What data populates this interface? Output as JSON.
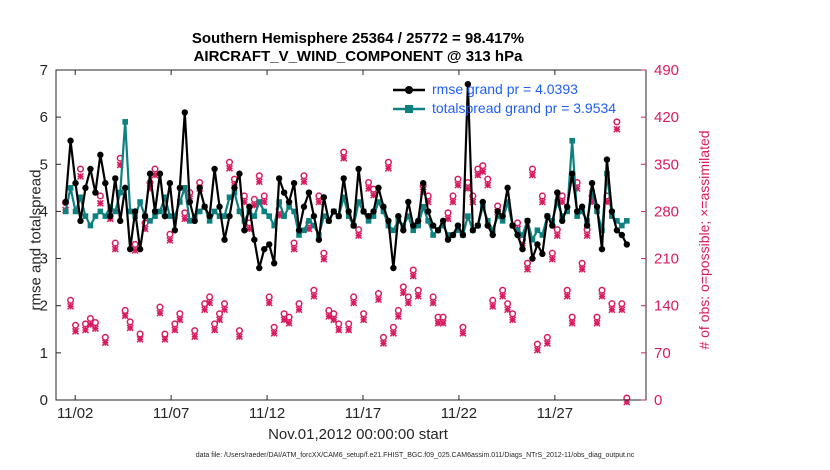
{
  "title_line1": "Southern Hemisphere 25364 / 25772 = 98.417%",
  "title_line2": "AIRCRAFT_V_WIND_COMPONENT @ 313 hPa",
  "footer": "data file: /Users/raeder/DAI/ATM_forcXX/CAM6_setup/f.e21.FHIST_BGC.f09_025.CAM6assim.011/Diags_NTrS_2012-11/obs_diag_output.nc",
  "chart_data": {
    "type": "line",
    "xlabel": "Nov.01,2012 00:00:00 start",
    "ylabel": "rmse and totalspread",
    "y2label": "# of obs: o=possible; ×=assimilated",
    "xlim": [
      0.5,
      31.25
    ],
    "ylim": [
      0,
      7
    ],
    "y2lim": [
      0,
      490
    ],
    "x_ticks": [
      1.5,
      6.5,
      11.5,
      16.5,
      21.5,
      26.5
    ],
    "x_tick_labels": [
      "11/02",
      "11/07",
      "11/12",
      "11/17",
      "11/22",
      "11/27"
    ],
    "y_ticks": [
      "0",
      "1",
      "2",
      "3",
      "4",
      "5",
      "6",
      "7"
    ],
    "y2_ticks": [
      "0",
      "70",
      "140",
      "210",
      "280",
      "350",
      "420",
      "490"
    ],
    "series": [
      {
        "name": "rmse grand pr = 4.0393",
        "color": "#000000",
        "values": [
          4.2,
          5.5,
          4.6,
          3.8,
          4.5,
          4.9,
          4.4,
          5.2,
          4.6,
          3.9,
          4.7,
          3.8,
          4.5,
          3.2,
          4.0,
          3.2,
          3.9,
          4.8,
          4.0,
          4.8,
          3.9,
          4.6,
          3.6,
          4.5,
          6.1,
          4.2,
          3.8,
          4.5,
          4.1,
          3.9,
          4.9,
          4.1,
          3.4,
          3.9,
          4.5,
          4.8,
          3.6,
          4.1,
          3.4,
          2.8,
          3.2,
          3.3,
          2.9,
          4.7,
          4.4,
          4.2,
          4.6,
          3.6,
          4.1,
          4.4,
          3.9,
          3.4,
          4.3,
          3.8,
          4.0,
          3.9,
          4.7,
          4.0,
          3.7,
          4.9,
          4.0,
          3.9,
          4.0,
          4.5,
          4.1,
          3.8,
          2.8,
          3.9,
          3.6,
          4.2,
          3.7,
          3.8,
          4.6,
          4.0,
          3.7,
          3.6,
          3.8,
          3.4,
          3.5,
          3.7,
          3.5,
          6.7,
          3.6,
          3.7,
          4.2,
          3.7,
          3.5,
          4.0,
          3.9,
          4.5,
          3.7,
          3.5,
          3.2,
          3.8,
          3.0,
          3.3,
          3.1,
          3.9,
          3.7,
          4.4,
          3.8,
          4.1,
          4.8,
          4.0,
          4.1,
          3.7,
          4.6,
          4.1,
          3.2,
          5.1,
          4.0,
          3.6,
          3.5,
          3.3
        ],
        "marker": "dot"
      },
      {
        "name": "totalspread grand pr = 3.9534",
        "color": "#0f8080",
        "values": [
          4.0,
          4.5,
          4.0,
          4.3,
          3.9,
          3.7,
          3.9,
          4.0,
          3.9,
          4.1,
          4.0,
          4.4,
          5.9,
          4.0,
          3.9,
          4.2,
          3.9,
          3.8,
          3.9,
          4.0,
          4.3,
          3.9,
          3.9,
          4.2,
          4.5,
          3.8,
          3.9,
          4.0,
          4.1,
          3.8,
          4.0,
          3.9,
          3.9,
          4.3,
          4.4,
          4.0,
          3.8,
          4.0,
          3.9,
          4.2,
          4.0,
          3.9,
          3.7,
          4.2,
          3.9,
          4.1,
          4.0,
          3.5,
          3.6,
          3.8,
          3.7,
          3.5,
          3.9,
          3.8,
          4.0,
          3.9,
          4.3,
          3.9,
          3.7,
          4.2,
          4.0,
          3.8,
          3.9,
          4.2,
          4.0,
          3.7,
          3.6,
          3.8,
          3.7,
          3.9,
          3.6,
          3.7,
          4.1,
          3.8,
          3.5,
          3.6,
          3.7,
          3.5,
          3.5,
          3.6,
          3.5,
          3.9,
          3.6,
          3.7,
          4.1,
          3.8,
          3.6,
          3.9,
          3.8,
          4.2,
          3.7,
          3.6,
          3.5,
          3.8,
          3.4,
          3.6,
          3.5,
          3.9,
          3.8,
          4.2,
          3.9,
          4.0,
          5.5,
          3.9,
          4.0,
          3.8,
          4.4,
          4.0,
          3.6,
          4.8,
          3.9,
          3.8,
          3.7,
          3.8
        ],
        "marker": "square"
      }
    ],
    "obs_possible": [
      290,
      145,
      108,
      340,
      110,
      118,
      112,
      300,
      90,
      275,
      230,
      356,
      130,
      113,
      228,
      95,
      260,
      320,
      340,
      135,
      95,
      243,
      110,
      125,
      275,
      305,
      100,
      320,
      140,
      150,
      110,
      125,
      140,
      350,
      325,
      100,
      300,
      260,
      295,
      330,
      300,
      150,
      105,
      280,
      125,
      120,
      230,
      140,
      330,
      260,
      160,
      300,
      215,
      130,
      125,
      110,
      365,
      110,
      150,
      250,
      125,
      320,
      310,
      155,
      90,
      350,
      105,
      130,
      165,
      150,
      190,
      160,
      315,
      300,
      150,
      120,
      120,
      275,
      300,
      325,
      105,
      320,
      300,
      340,
      345,
      325,
      145,
      285,
      160,
      140,
      125,
      260,
      235,
      200,
      340,
      80,
      300,
      90,
      215,
      250,
      300,
      160,
      120,
      320,
      200,
      250,
      300,
      120,
      160,
      300,
      140,
      410,
      140,
      0
    ],
    "obs_assimilated": [
      285,
      142,
      105,
      335,
      107,
      115,
      109,
      295,
      88,
      272,
      227,
      352,
      128,
      110,
      225,
      93,
      257,
      317,
      337,
      132,
      93,
      240,
      107,
      122,
      272,
      302,
      97,
      317,
      137,
      147,
      107,
      122,
      137,
      347,
      322,
      97,
      297,
      257,
      292,
      327,
      297,
      147,
      102,
      277,
      122,
      117,
      227,
      137,
      327,
      257,
      157,
      297,
      212,
      127,
      122,
      107,
      362,
      107,
      147,
      247,
      122,
      317,
      307,
      152,
      87,
      347,
      102,
      127,
      162,
      147,
      187,
      157,
      312,
      297,
      147,
      117,
      117,
      272,
      297,
      322,
      102,
      317,
      297,
      337,
      342,
      322,
      142,
      282,
      157,
      137,
      122,
      257,
      232,
      197,
      337,
      77,
      297,
      87,
      212,
      247,
      297,
      157,
      117,
      317,
      197,
      247,
      297,
      117,
      157,
      297,
      137,
      405,
      137,
      0
    ]
  },
  "colors": {
    "rmse": "#000000",
    "totalspread": "#0f8080",
    "obs": "#d81b60",
    "legend_text": "#1f5ef6"
  }
}
